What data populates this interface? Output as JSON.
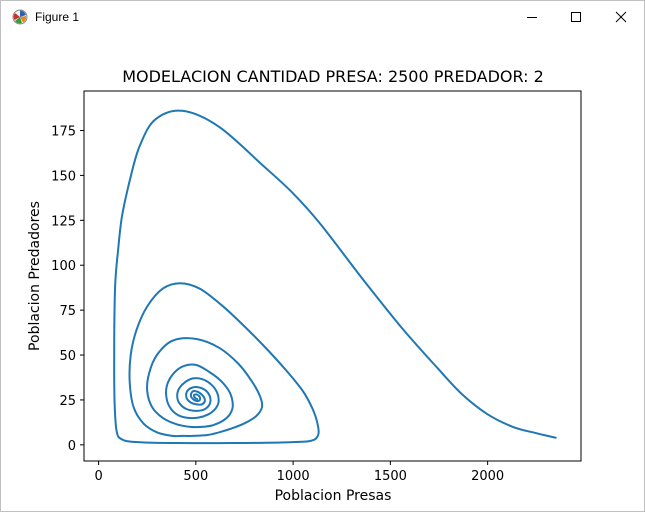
{
  "window": {
    "title": "Figure 1",
    "icon": "matplotlib-figure-icon",
    "controls": {
      "minimize": "minimize-icon",
      "maximize": "maximize-icon",
      "close": "close-icon"
    }
  },
  "chart_data": {
    "type": "line",
    "title": "MODELACION CANTIDAD PRESA: 2500 PREDADOR: 2",
    "xlabel": "Poblacion Presas",
    "ylabel": "Poblacion Predadores",
    "xlim": [
      -75,
      2480
    ],
    "ylim": [
      -9,
      197
    ],
    "xticks": [
      0,
      500,
      1000,
      1500,
      2000
    ],
    "yticks": [
      0,
      25,
      50,
      75,
      100,
      125,
      150,
      175
    ],
    "grid": false,
    "legend": null,
    "color": "#1f77b4",
    "series": [
      {
        "x": [
          2350,
          2250,
          2130,
          2000,
          1870,
          1740,
          1560,
          1360,
          1140,
          1000,
          850,
          620,
          430,
          290,
          210,
          160,
          120,
          100,
          85,
          80,
          82,
          92,
          120,
          200,
          400,
          700,
          1000,
          1100,
          1130,
          1125,
          1100,
          1050,
          960,
          850,
          740,
          630,
          520,
          420,
          330,
          250,
          195,
          165,
          160,
          180,
          230,
          300,
          380,
          430,
          480,
          560,
          620,
          680,
          750,
          810,
          840,
          830,
          790,
          720,
          620,
          500,
          380,
          300,
          260,
          250,
          275,
          330,
          400,
          470,
          530,
          590,
          640,
          675,
          690,
          675,
          630,
          570,
          500,
          430,
          380,
          350,
          350,
          372,
          410,
          460,
          515,
          565,
          600,
          617,
          610,
          580,
          535,
          485,
          440,
          410,
          405,
          420,
          450,
          490,
          530,
          560,
          575,
          570,
          548,
          515,
          485,
          460,
          450,
          455,
          475,
          505,
          530,
          545,
          544,
          530,
          510,
          490,
          478,
          475,
          485,
          500,
          515,
          522,
          518,
          505,
          495,
          490,
          493,
          500,
          507
        ],
        "y": [
          4,
          6.5,
          10,
          17,
          28,
          43,
          65,
          92,
          123,
          140,
          155,
          177,
          186,
          181,
          166,
          147,
          127,
          108,
          88,
          50,
          25,
          8,
          3,
          1.5,
          1,
          1,
          1.5,
          2.5,
          6,
          12,
          20,
          30,
          42,
          55,
          67,
          78,
          87,
          90,
          87,
          77,
          64,
          50,
          35,
          21,
          12,
          7,
          5,
          5,
          5,
          5.5,
          7,
          9,
          12,
          16,
          21,
          27,
          35,
          45,
          54,
          59,
          58,
          50,
          40,
          30,
          21,
          15,
          11.5,
          10,
          10,
          11,
          13.5,
          17,
          22,
          29,
          35.5,
          40.5,
          44.5,
          43.5,
          39,
          32.5,
          25.5,
          20,
          16.5,
          15,
          15.2,
          17,
          20,
          24,
          29,
          33.5,
          36.5,
          37,
          34.5,
          30.5,
          26,
          22.5,
          20,
          19,
          19.2,
          21,
          24,
          27.5,
          30.5,
          32,
          32,
          30.5,
          28,
          25.5,
          23.5,
          22.5,
          22.5,
          24,
          26,
          28,
          29.5,
          30,
          29,
          27,
          25.5,
          24.5,
          24.5,
          25.5,
          27,
          28,
          28,
          27.5,
          26.5,
          25.8,
          25.5
        ]
      }
    ]
  }
}
